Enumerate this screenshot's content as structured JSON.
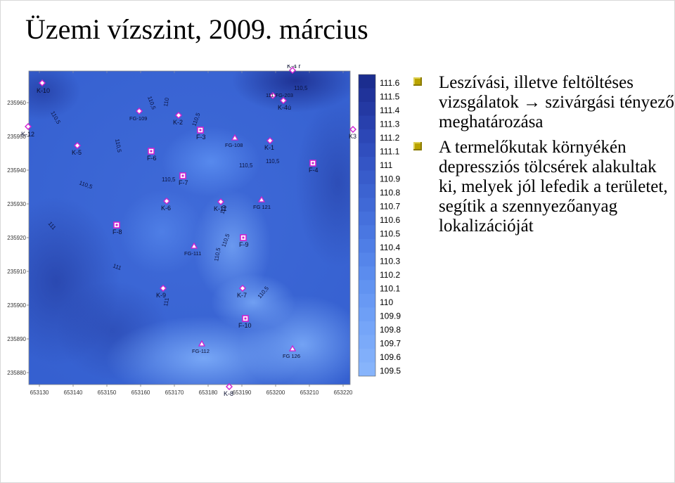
{
  "title": "Üzemi vízszint, 2009. március",
  "bullets": [
    "Leszívási, illetve feltöltéses vizsgálatok → szivárgási tényező meghatározása",
    "A termelőkutak környékén depressziós tölcsérek alakultak ki, melyek jól lefedik a területet, segítik a szennyezőanyag lokalizációját"
  ],
  "map": {
    "y_ticks": [
      "235960",
      "235950",
      "235940",
      "235930",
      "235920",
      "235910",
      "235900",
      "235890",
      "235880"
    ],
    "x_ticks": [
      "653130",
      "653140",
      "653150",
      "653160",
      "653170",
      "653180",
      "653190",
      "653200",
      "653210",
      "653220"
    ],
    "wells": [
      "K-10",
      "K-12",
      "K-5",
      "FG-109",
      "K-2",
      "F-3",
      "FG-108",
      "K-1",
      "K3",
      "F-6",
      "F-7",
      "K-6",
      "K-11",
      "FG 121",
      "F-4",
      "F-8",
      "FG-111",
      "F-9",
      "K-9",
      "K-7",
      "F-10",
      "FG-112",
      "FG 126",
      "K-8",
      "K-4 r",
      "K-4ú",
      "111 FG-203"
    ],
    "contours": [
      "110,5",
      "110,5",
      "110,5",
      "110",
      "110,5",
      "110,5",
      "110,5",
      "110,5",
      "110,5",
      "110",
      "110,5",
      "111",
      "111",
      "111",
      "110,5",
      "110,5",
      "110,5"
    ],
    "legend": [
      "111.6",
      "111.5",
      "111.4",
      "111.3",
      "111.2",
      "111.1",
      "111",
      "110.9",
      "110.8",
      "110.7",
      "110.6",
      "110.5",
      "110.4",
      "110.3",
      "110.2",
      "110.1",
      "110",
      "109.9",
      "109.8",
      "109.7",
      "109.6",
      "109.5"
    ],
    "legend_colors": [
      "#1b2d8f",
      "#20339a",
      "#2439a3",
      "#2840ad",
      "#2c47b6",
      "#304ebe",
      "#3455c5",
      "#385ccb",
      "#3c63d1",
      "#4069d6",
      "#4570dc",
      "#4a77e1",
      "#4f7ee6",
      "#5585ea",
      "#5b8cee",
      "#6193f1",
      "#6899f4",
      "#6e9ff6",
      "#75a5f8",
      "#7baaf9",
      "#81affa",
      "#87b4fb"
    ],
    "colors": {
      "field": "#3a63d4",
      "dark": "#1d2f93",
      "light": "#7aaaf8",
      "marker": "#d020d0"
    }
  }
}
